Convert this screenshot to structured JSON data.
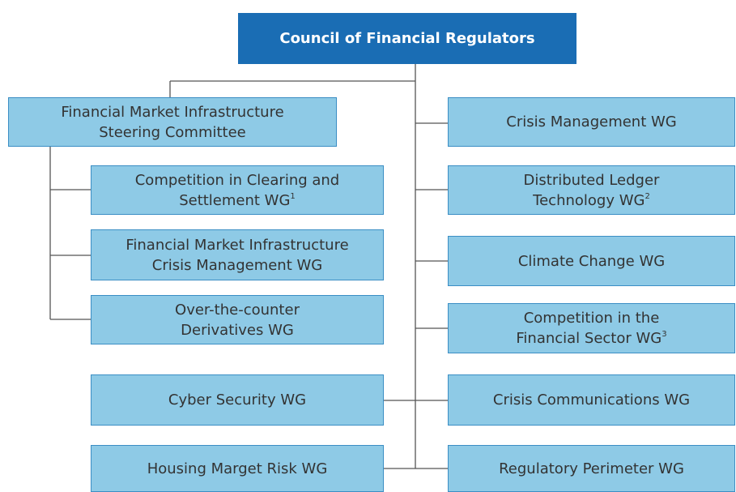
{
  "root": {
    "label": "Council of Financial Regulators"
  },
  "nodes": [
    {
      "lines": [
        "Financial Market Infrastructure",
        "Steering Committee"
      ]
    },
    {
      "lines": [
        "Competition in Clearing and",
        "Settlement WG"
      ],
      "note": "1"
    },
    {
      "lines": [
        "Financial Market Infrastructure",
        "Crisis Management WG"
      ]
    },
    {
      "lines": [
        "Over-the-counter",
        "Derivatives WG"
      ]
    },
    {
      "lines": [
        "Cyber Security WG"
      ]
    },
    {
      "lines": [
        "Housing Marget Risk WG"
      ]
    },
    {
      "lines": [
        "Crisis Management WG"
      ]
    },
    {
      "lines": [
        "Distributed Ledger",
        "Technology WG"
      ],
      "note": "2"
    },
    {
      "lines": [
        "Climate Change WG"
      ]
    },
    {
      "lines": [
        "Competition in the",
        "Financial Sector WG"
      ],
      "note": "3"
    },
    {
      "lines": [
        "Crisis Communications WG"
      ]
    },
    {
      "lines": [
        "Regulatory Perimeter WG"
      ]
    }
  ]
}
